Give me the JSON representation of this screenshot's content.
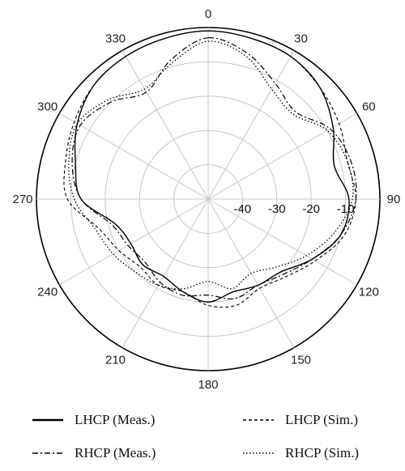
{
  "chart_data": {
    "type": "polar-line",
    "angle_ticks": [
      "0",
      "30",
      "60",
      "90",
      "120",
      "150",
      "180",
      "210",
      "240",
      "270",
      "300",
      "330"
    ],
    "radial_ticks": [
      "-40",
      "-30",
      "-20",
      "-10"
    ],
    "rlim": [
      -50,
      0
    ],
    "grid": true,
    "legend_position": "bottom",
    "series": [
      {
        "name": "LHCP (Meas.)",
        "style": "solid",
        "color": "#000000",
        "angles": [
          0,
          15,
          30,
          45,
          60,
          75,
          90,
          105,
          120,
          135,
          150,
          165,
          180,
          195,
          210,
          225,
          240,
          255,
          270,
          285,
          300,
          315,
          330,
          345,
          360
        ],
        "values": [
          -1,
          -1.5,
          -2,
          -4,
          -8,
          -12,
          -9,
          -10,
          -15,
          -20,
          -21,
          -22,
          -20,
          -22,
          -24,
          -23,
          -24,
          -22,
          -13,
          -10,
          -6,
          -3,
          -2,
          -1.5,
          -1
        ]
      },
      {
        "name": "LHCP (Sim.)",
        "style": "dashed",
        "color": "#000000",
        "angles": [
          0,
          15,
          30,
          45,
          60,
          75,
          90,
          105,
          120,
          135,
          150,
          165,
          180,
          195,
          210,
          225,
          240,
          255,
          270,
          285,
          300,
          315,
          330,
          345,
          360
        ],
        "values": [
          -1,
          -1.5,
          -2,
          -4,
          -6,
          -8,
          -7,
          -9,
          -14,
          -18,
          -20,
          -18,
          -19,
          -22,
          -21,
          -22,
          -20,
          -17,
          -9,
          -7,
          -5,
          -3,
          -2,
          -1.5,
          -1
        ]
      },
      {
        "name": "RHCP (Meas.)",
        "style": "dashdot",
        "color": "#000000",
        "angles": [
          0,
          15,
          30,
          45,
          60,
          75,
          90,
          105,
          120,
          135,
          150,
          165,
          180,
          195,
          210,
          225,
          240,
          255,
          270,
          285,
          300,
          315,
          330,
          345,
          360
        ],
        "values": [
          -3,
          -6,
          -11,
          -14,
          -9,
          -7,
          -7,
          -10,
          -15,
          -19,
          -21,
          -20,
          -22,
          -21,
          -22,
          -24,
          -23,
          -21,
          -13,
          -9,
          -7,
          -10,
          -14,
          -8,
          -3
        ]
      },
      {
        "name": "RHCP (Sim.)",
        "style": "dotted",
        "color": "#000000",
        "angles": [
          0,
          15,
          30,
          45,
          60,
          75,
          90,
          105,
          120,
          135,
          150,
          165,
          180,
          195,
          210,
          225,
          240,
          255,
          270,
          285,
          300,
          315,
          330,
          345,
          360
        ],
        "values": [
          -4,
          -7,
          -13,
          -15,
          -10,
          -8,
          -8,
          -12,
          -17,
          -22,
          -25,
          -23,
          -26,
          -23,
          -21,
          -20,
          -18,
          -16,
          -11,
          -8,
          -6,
          -9,
          -13,
          -9,
          -4
        ]
      }
    ]
  }
}
